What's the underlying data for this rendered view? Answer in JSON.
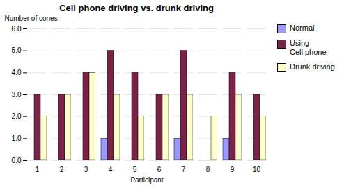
{
  "chart_data": {
    "type": "bar",
    "title": "Cell phone driving vs. drunk driving",
    "xlabel": "Participant",
    "ylabel": "Number of cones",
    "categories": [
      "1",
      "2",
      "3",
      "4",
      "5",
      "6",
      "7",
      "8",
      "9",
      "10"
    ],
    "series": [
      {
        "name": "Normal",
        "color": "#9999FF",
        "values": [
          0,
          0,
          0,
          1,
          0,
          0,
          1,
          0,
          1,
          0
        ]
      },
      {
        "name": "Using\nCell phone",
        "color": "#7B2346",
        "values": [
          3,
          3,
          4,
          5,
          4,
          3,
          5,
          0,
          4,
          3
        ]
      },
      {
        "name": "Drunk driving",
        "color": "#FFFFCC",
        "values": [
          2,
          3,
          4,
          3,
          2,
          3,
          3,
          2,
          3,
          2
        ]
      }
    ],
    "ylim": [
      0,
      6
    ],
    "yticks": [
      0,
      1,
      2,
      3,
      4,
      5,
      6
    ],
    "grid": true,
    "legend": "right"
  }
}
